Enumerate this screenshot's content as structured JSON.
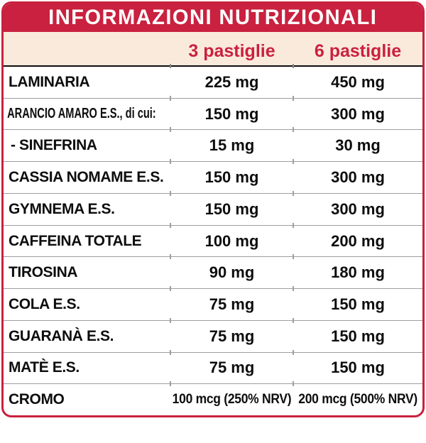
{
  "colors": {
    "accent_red": "#c9213f",
    "header_band": "#faeadc",
    "separator_gray": "#9e9e9e"
  },
  "header": {
    "title": "INFORMAZIONI NUTRIZIONALI"
  },
  "columns": {
    "dose3_label": "3 pastiglie",
    "dose6_label": "6 pastiglie"
  },
  "table": {
    "rows": [
      {
        "nutrient": "LAMINARIA",
        "per3": "225 mg",
        "per6": "450 mg"
      },
      {
        "nutrient": "ARANCIO AMARO E.S., di cui:",
        "per3": "150 mg",
        "per6": "300 mg"
      },
      {
        "nutrient": "- SINEFRINA",
        "per3": "15 mg",
        "per6": "30 mg"
      },
      {
        "nutrient": "CASSIA NOMAME E.S.",
        "per3": "150 mg",
        "per6": "300 mg"
      },
      {
        "nutrient": "GYMNEMA E.S.",
        "per3": "150 mg",
        "per6": "300 mg"
      },
      {
        "nutrient": "CAFFEINA TOTALE",
        "per3": "100 mg",
        "per6": "200 mg"
      },
      {
        "nutrient": "TIROSINA",
        "per3": "90 mg",
        "per6": "180 mg"
      },
      {
        "nutrient": "COLA E.S.",
        "per3": "75 mg",
        "per6": "150 mg"
      },
      {
        "nutrient": "GUARANÀ E.S.",
        "per3": "75 mg",
        "per6": "150 mg"
      },
      {
        "nutrient": "MATÈ E.S.",
        "per3": "75 mg",
        "per6": "150 mg"
      },
      {
        "nutrient": "CROMO",
        "per3": "100 mcg (250% NRV)",
        "per6": "200 mcg (500% NRV)"
      }
    ]
  }
}
